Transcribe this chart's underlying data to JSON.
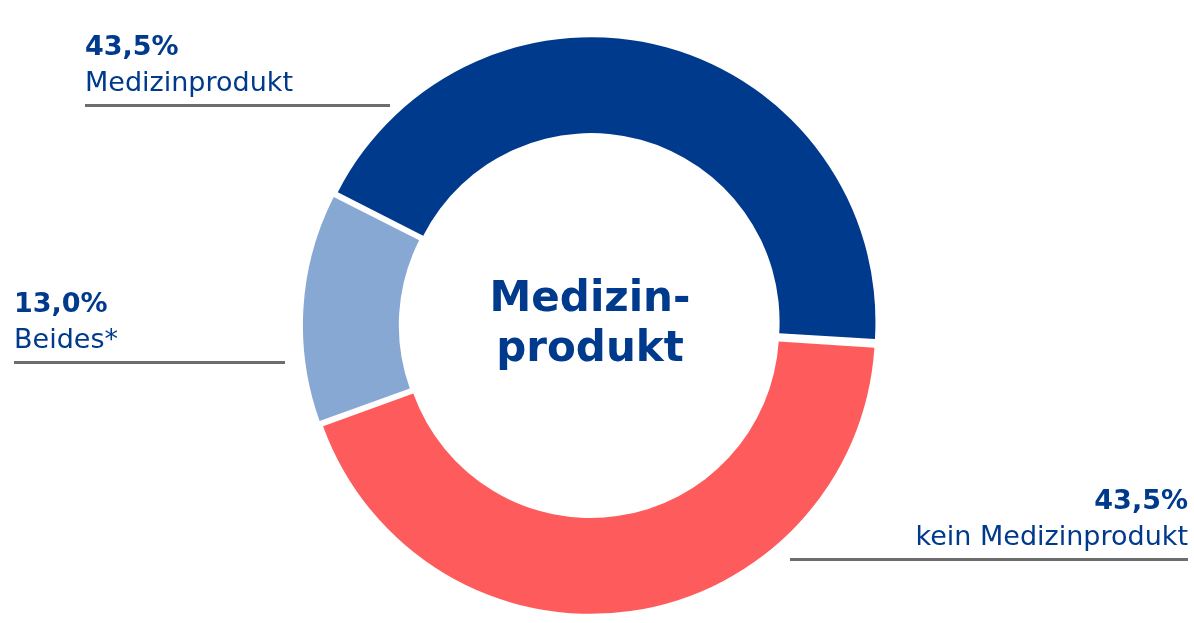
{
  "chart_data": {
    "type": "donut",
    "title": "Medizin-produkt",
    "categories": [
      "Medizinprodukt",
      "kein Medizinprodukt",
      "Beides*"
    ],
    "values": [
      43.5,
      43.5,
      13.0
    ],
    "value_labels": [
      "43,5%",
      "43,5%",
      "13,0%"
    ],
    "colors": [
      "#003a8c",
      "#fe5c5c",
      "#88a8d4"
    ],
    "legend": false
  }
}
